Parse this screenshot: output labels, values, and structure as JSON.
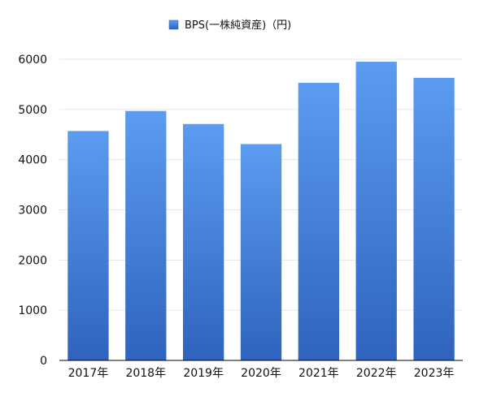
{
  "chart_data": {
    "type": "bar",
    "categories": [
      "2017年",
      "2018年",
      "2019年",
      "2020年",
      "2021年",
      "2022年",
      "2023年"
    ],
    "series": [
      {
        "name": "BPS(一株純資産)（円)",
        "values": [
          4570,
          4970,
          4710,
          4310,
          5530,
          5950,
          5630
        ]
      }
    ],
    "ylim": [
      0,
      6000
    ],
    "yticks": [
      "0",
      "1000",
      "2000",
      "3000",
      "4000",
      "5000",
      "6000"
    ],
    "grid": true,
    "legend_position": "top-center",
    "colors": {
      "bar_top": "#5b9cf0",
      "bar_bottom": "#2f63be",
      "grid": "#e6e6e6",
      "axis": "#000000"
    }
  }
}
